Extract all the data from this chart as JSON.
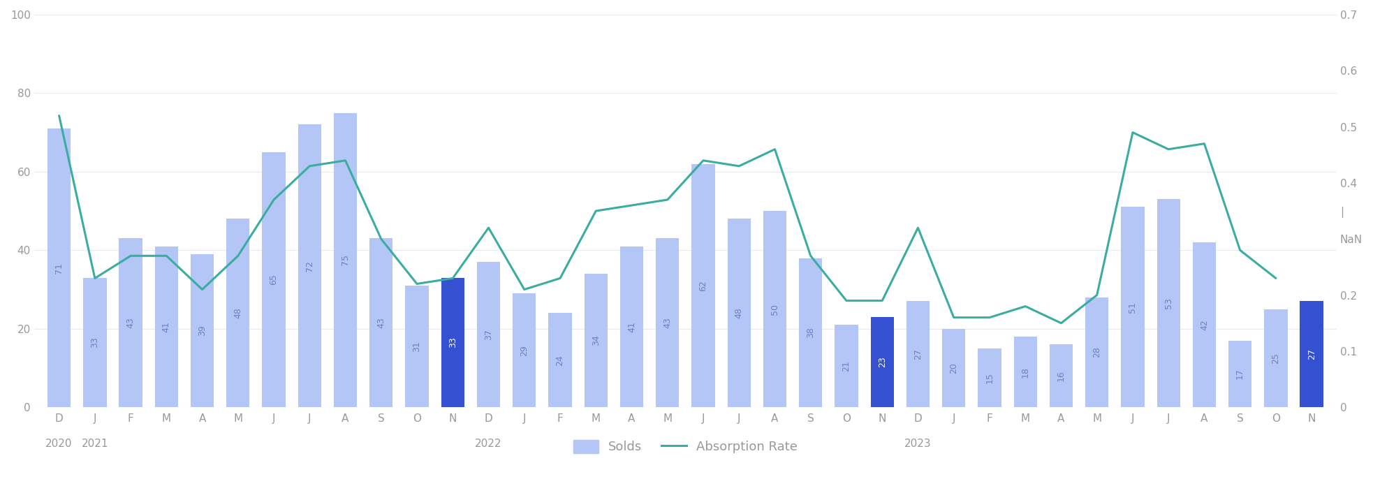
{
  "months": [
    "D",
    "J",
    "F",
    "M",
    "A",
    "M",
    "J",
    "J",
    "A",
    "S",
    "O",
    "N",
    "D",
    "J",
    "F",
    "M",
    "A",
    "M",
    "J",
    "J",
    "A",
    "S",
    "O",
    "N",
    "D",
    "J",
    "F",
    "M",
    "A",
    "M",
    "J",
    "J",
    "A",
    "S",
    "O",
    "N"
  ],
  "year_labels": [
    {
      "label": "2020",
      "index": 0
    },
    {
      "label": "2021",
      "index": 1
    },
    {
      "label": "2022",
      "index": 12
    },
    {
      "label": "2023",
      "index": 24
    }
  ],
  "solds": [
    71,
    33,
    43,
    41,
    39,
    48,
    65,
    72,
    75,
    43,
    31,
    33,
    37,
    29,
    24,
    34,
    41,
    43,
    62,
    48,
    50,
    38,
    21,
    23,
    27,
    20,
    15,
    18,
    16,
    28,
    51,
    53,
    42,
    17,
    25,
    27
  ],
  "absorption_rate": [
    0.52,
    0.23,
    0.27,
    0.27,
    0.21,
    0.27,
    0.37,
    0.43,
    0.44,
    0.3,
    0.22,
    0.23,
    0.32,
    0.21,
    0.23,
    0.35,
    0.36,
    0.37,
    0.44,
    0.43,
    0.46,
    0.27,
    0.19,
    0.19,
    0.32,
    0.16,
    0.16,
    0.18,
    0.15,
    0.2,
    0.49,
    0.46,
    0.47,
    0.28,
    0.23,
    null
  ],
  "highlight_indices": [
    11,
    23,
    35
  ],
  "bar_color_normal": "#b3c6f5",
  "bar_color_highlight": "#3550d0",
  "line_color": "#3aada0",
  "bar_label_color_normal": "#6b82c8",
  "bar_label_color_highlight": "#ffffff",
  "background_color": "#ffffff",
  "grid_color": "#e8eaf0",
  "left_ylim": [
    0,
    100
  ],
  "right_ylim": [
    0,
    0.7
  ],
  "left_yticks": [
    0,
    20,
    40,
    60,
    80,
    100
  ],
  "right_yticks": [
    0,
    0.1,
    0.2,
    0.3,
    0.35,
    0.4,
    0.5,
    0.6,
    0.7
  ],
  "right_ytick_labels": [
    "0",
    "0.1",
    "0.2",
    "NaN",
    "|",
    "0.4",
    "0.5",
    "0.6",
    "0.7"
  ],
  "legend_labels": [
    "Solds",
    "Absorption Rate"
  ],
  "tick_color": "#999999"
}
